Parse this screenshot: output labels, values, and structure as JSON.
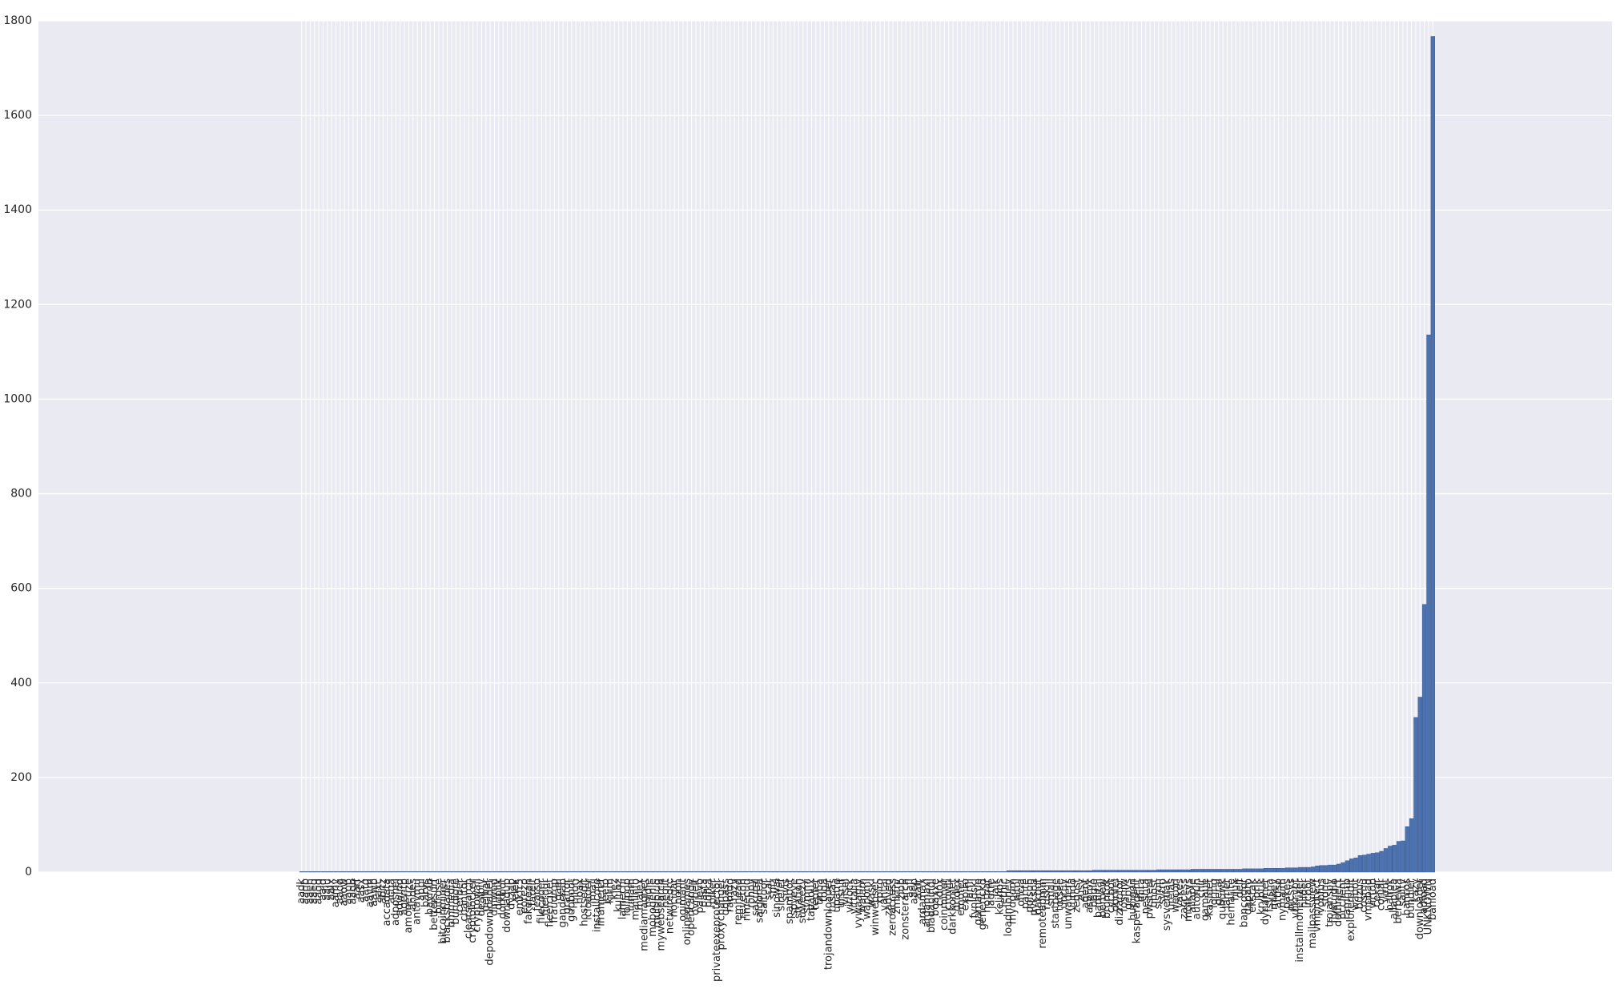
{
  "chart_data": {
    "type": "bar",
    "categories": [
      "aadk",
      "aanb",
      "aaeh",
      "aaeq",
      "aagd",
      "aajd",
      "aaju",
      "aajx",
      "aamy",
      "aaoq",
      "aaow",
      "aapp",
      "aaqb",
      "aarf",
      "aasx",
      "aatg",
      "aavm",
      "aawb",
      "aaxc",
      "abitz",
      "accadata",
      "acqa",
      "adposhel",
      "adwind",
      "agentb",
      "amonetize",
      "andes",
      "antavmu",
      "appl",
      "barys",
      "bayrob",
      "bettersurf",
      "bifrose",
      "bitcoinminer",
      "blackshades",
      "bmmedia",
      "bundlore",
      "cerber",
      "chanitor",
      "clearsearch",
      "cryptolocker",
      "cryptowall",
      "dealply",
      "delbar",
      "depodownloader",
      "dinwod",
      "doplik",
      "dorkbot",
      "downadup",
      "dyzap",
      "elex",
      "emkfr5",
      "eorezo",
      "fakerean",
      "fareit",
      "fearso",
      "filecoder",
      "filetour",
      "fleercivet",
      "fraudrop",
      "gael",
      "gandcrab",
      "graftor",
      "gupboot",
      "hiloti",
      "hoax",
      "hostsedit",
      "icloader",
      "imali",
      "installcore",
      "iframeref",
      "jeefo",
      "kilim",
      "klez",
      "kuluoz",
      "lamechi",
      "lollipop",
      "lunam",
      "mailinfo",
      "malex",
      "mediamagnet",
      "midie",
      "mobogenie",
      "multiplug",
      "mywebsearch",
      "neojit",
      "netwiredrc",
      "nocigar",
      "noon",
      "ogimant",
      "onlinegames",
      "opencandy",
      "ovrbelt",
      "palevo",
      "pasta",
      "pdfka",
      "piker",
      "privateexeprotector",
      "proxychanger",
      "qqpass",
      "ramdo",
      "razy",
      "remhead",
      "reveton",
      "rimecud",
      "ronoy",
      "sakurel",
      "salgorea",
      "saltoor",
      "scar",
      "shiz",
      "sinowal",
      "sirefef",
      "sivis",
      "spambot",
      "spyeye",
      "stration",
      "suweezy",
      "symmi",
      "tapaoux",
      "tepfer",
      "tinba",
      "toga",
      "trojandownloader",
      "tuscas",
      "upatre",
      "ursnif",
      "vilsel",
      "virlock",
      "vittalia",
      "vywaamy",
      "wajam",
      "wapomi",
      "waski",
      "winwebsec",
      "xpiro",
      "yantai",
      "zadved",
      "zeroaccess",
      "zmkfrv",
      "zlob",
      "zonsterarch",
      "aafl",
      "aaep",
      "aafr",
      "ardamax",
      "ardamaxl",
      "bladabindi",
      "boaxxe",
      "cidox",
      "coinminer",
      "crowti",
      "darkkomet",
      "dridex",
      "emotet",
      "expiro",
      "farfli",
      "fynloski",
      "gamarue",
      "generickd",
      "hotbar",
      "jadtre",
      "jaik",
      "kelihos",
      "lethic",
      "loadmoney",
      "mydoom",
      "nitol",
      "oficla",
      "parite",
      "poison",
      "pykspa",
      "qakbot",
      "remoteadmin",
      "ruskill",
      "small",
      "startpage",
      "tofsee",
      "unruy",
      "unwaders",
      "vundo",
      "zegost",
      "zusy",
      "agent",
      "asprox",
      "bagle",
      "bamital",
      "berbew",
      "brontok",
      "cycbot",
      "dorifel",
      "dizraptor",
      "fosniw",
      "gepys",
      "hupigon",
      "kasperagent",
      "mira",
      "neshta",
      "pwsteal",
      "qhost",
      "sisron",
      "sytro",
      "sysvenfak",
      "urelas",
      "wecorl",
      "yakes",
      "zaccess",
      "mofksys",
      "allaple",
      "autorun",
      "chir",
      "gamaue",
      "kasidet",
      "loring",
      "geral",
      "quhuwk",
      "lamer",
      "hematite",
      "hlux",
      "delf",
      "bancodor",
      "dapato",
      "ekstak",
      "jorik",
      "kryptik",
      "dynamer",
      "fsysna",
      "mikey",
      "attfso",
      "nymaim",
      "pakes",
      "picsys",
      "vbkrypt",
      "installmonetizer",
      "hilder",
      "ircbot",
      "mailpassview",
      "vmprotect",
      "vobfus",
      "sfone",
      "trojanspy",
      "flystudio",
      "delfinject",
      "pcclient",
      "ramnitb",
      "exploreredit",
      "wabot",
      "buzus",
      "cosmu",
      "vmpbad",
      "virtob",
      "cekar",
      "conjar",
      "virut",
      "balrok",
      "allaplea",
      "berbewa",
      "sality",
      "bancos",
      "bundler",
      "kazy",
      "downloader",
      "adload",
      "UNKNOWN",
      "banload"
    ],
    "values": [
      1,
      1,
      1,
      1,
      1,
      1,
      1,
      1,
      1,
      1,
      1,
      1,
      1,
      1,
      1,
      1,
      1,
      1,
      1,
      1,
      1,
      1,
      1,
      1,
      1,
      1,
      1,
      1,
      1,
      1,
      1,
      1,
      1,
      1,
      1,
      1,
      1,
      1,
      1,
      1,
      1,
      1,
      1,
      1,
      1,
      1,
      1,
      1,
      1,
      1,
      1,
      1,
      1,
      1,
      1,
      1,
      1,
      1,
      1,
      1,
      1,
      1,
      1,
      1,
      1,
      1,
      1,
      1,
      1,
      1,
      1,
      1,
      1,
      1,
      1,
      1,
      1,
      1,
      1,
      1,
      1,
      1,
      1,
      1,
      1,
      1,
      1,
      1,
      1,
      1,
      1,
      1,
      1,
      1,
      1,
      1,
      1,
      1,
      1,
      1,
      1,
      1,
      1,
      1,
      1,
      1,
      1,
      1,
      1,
      1,
      1,
      1,
      1,
      1,
      1,
      1,
      1,
      1,
      1,
      1,
      1,
      1,
      1,
      1,
      1,
      1,
      1,
      1,
      1,
      1,
      1,
      1,
      1,
      1,
      1,
      1,
      1,
      1,
      1,
      1,
      1,
      1,
      1,
      1,
      1,
      1,
      1,
      1,
      1,
      1,
      1,
      1,
      1,
      1,
      1,
      1,
      1,
      1,
      1,
      1,
      1,
      1,
      1,
      1,
      1,
      3,
      3,
      3,
      3,
      3,
      3,
      3,
      3,
      3,
      3,
      3,
      3,
      3,
      3,
      3,
      3,
      3,
      3,
      3,
      3,
      4,
      4,
      4,
      4,
      4,
      4,
      4,
      4,
      4,
      4,
      4,
      4,
      4,
      4,
      4,
      5,
      5,
      5,
      5,
      5,
      5,
      5,
      5,
      6,
      6,
      6,
      6,
      6,
      6,
      6,
      6,
      6,
      6,
      6,
      6,
      7,
      7,
      7,
      7,
      7,
      8,
      8,
      8,
      8,
      8,
      9,
      9,
      9,
      10,
      10,
      10,
      11,
      13,
      14,
      14,
      15,
      15,
      17,
      20,
      24,
      28,
      30,
      35,
      36,
      38,
      40,
      41,
      44,
      50,
      55,
      57,
      65,
      66,
      96,
      113,
      327,
      370,
      566,
      1136,
      1767
    ],
    "color": "#4c72b0",
    "ylim": [
      0,
      1800
    ],
    "yticks": [
      0,
      200,
      400,
      600,
      800,
      1000,
      1200,
      1400,
      1600,
      1800
    ],
    "grid": true
  }
}
